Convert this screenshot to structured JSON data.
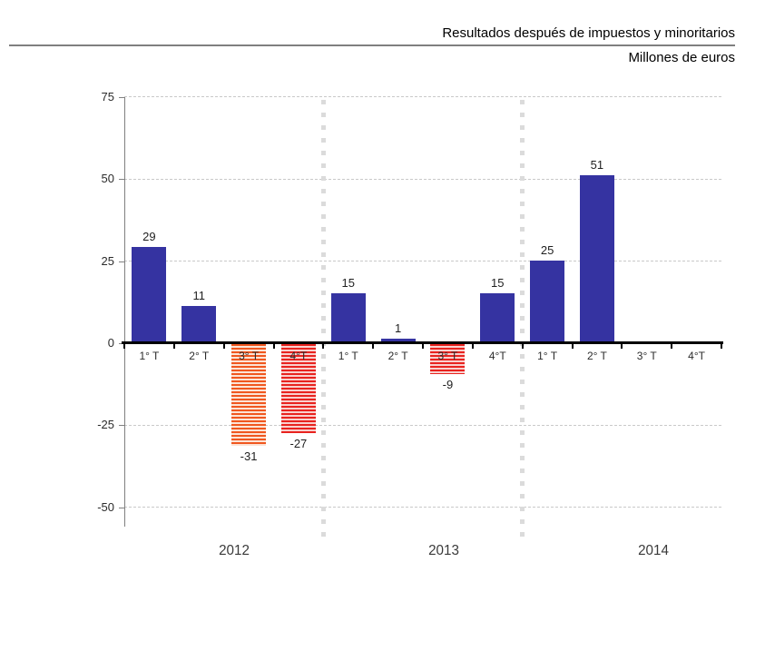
{
  "header": {
    "title": "Resultados después de impuestos y minoritarios",
    "subtitle": "Millones de euros"
  },
  "chart_data": {
    "type": "bar",
    "title": "Resultados después de impuestos y minoritarios",
    "ylabel": "Millones de euros",
    "ylim": [
      -50,
      75
    ],
    "yticks": [
      75,
      50,
      25,
      0,
      -25,
      -50
    ],
    "grid": "horizontal dashed gridlines every 25; dotted vertical separators between year groups",
    "legend": "none",
    "groups": [
      {
        "year": "2012",
        "quarters": [
          {
            "label": "1° T",
            "value": 29,
            "style": "solid-blue"
          },
          {
            "label": "2° T",
            "value": 11,
            "style": "solid-blue"
          },
          {
            "label": "3° T",
            "value": -31,
            "style": "striped-orange"
          },
          {
            "label": "4°T",
            "value": -27,
            "style": "striped-red"
          }
        ]
      },
      {
        "year": "2013",
        "quarters": [
          {
            "label": "1° T",
            "value": 15,
            "style": "solid-blue"
          },
          {
            "label": "2° T",
            "value": 1,
            "style": "solid-blue"
          },
          {
            "label": "3° T",
            "value": -9,
            "style": "striped-red"
          },
          {
            "label": "4°T",
            "value": 15,
            "style": "solid-blue"
          }
        ]
      },
      {
        "year": "2014",
        "quarters": [
          {
            "label": "1° T",
            "value": null,
            "style": "solid-blue"
          },
          {
            "label": "2° T",
            "value": null,
            "style": "solid-blue"
          },
          {
            "label": "3° T",
            "value": null,
            "style": "none"
          },
          {
            "label": "4°T",
            "value": null,
            "style": "none"
          }
        ]
      }
    ],
    "values_2014": {
      "1T": 25,
      "2T": 51
    },
    "colors": {
      "positive_bar": "#3533a1",
      "negative_bar_orange": "#f0571f",
      "negative_bar_red": "#e8231f",
      "gridline": "#c9c9c9",
      "year_separator": "#dbdbdb",
      "axis": "#000000",
      "text": "#2b2b2b"
    }
  }
}
